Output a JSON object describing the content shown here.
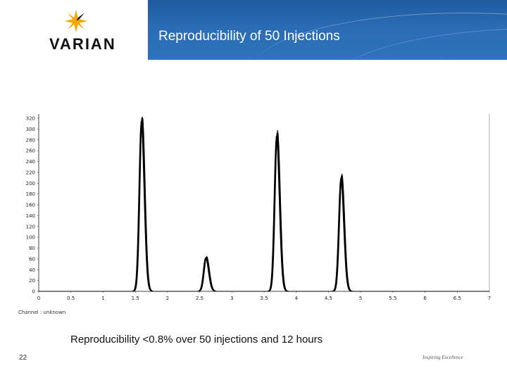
{
  "header": {
    "logo_text": "VARIAN",
    "title": "Reproducibility of 50 Injections"
  },
  "chart_data": {
    "type": "line",
    "title": "",
    "xlabel": "",
    "ylabel": "",
    "xlim": [
      0,
      7
    ],
    "ylim": [
      0,
      320
    ],
    "x_ticks": [
      0,
      0.5,
      1,
      1.5,
      2,
      2.5,
      3,
      3.5,
      4,
      4.5,
      5,
      5.5,
      6,
      6.5,
      7
    ],
    "y_ticks": [
      0,
      20,
      40,
      60,
      80,
      100,
      120,
      140,
      160,
      180,
      200,
      220,
      240,
      260,
      280,
      300,
      320
    ],
    "grid": false,
    "overlaid_traces": 50,
    "peaks": [
      {
        "retention_time": 1.6,
        "height": 320
      },
      {
        "retention_time": 2.6,
        "height": 63
      },
      {
        "retention_time": 3.7,
        "height": 292
      },
      {
        "retention_time": 4.7,
        "height": 213
      }
    ],
    "note": "Channel : unknown"
  },
  "caption": "Reproducibility <0.8% over 50 injections and 12 hours",
  "slide_number": "22",
  "footer_logo": "Inspiring Excellence",
  "colors": {
    "header_band": "#2a6cb5",
    "logo_accent": "#f2a900",
    "trace": "#000000"
  }
}
